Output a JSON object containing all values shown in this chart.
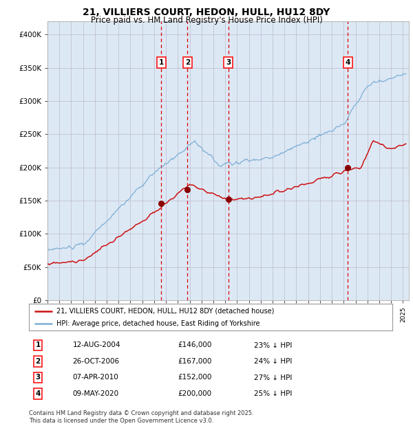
{
  "title": "21, VILLIERS COURT, HEDON, HULL, HU12 8DY",
  "subtitle": "Price paid vs. HM Land Registry's House Price Index (HPI)",
  "title_fontsize": 10,
  "subtitle_fontsize": 8.5,
  "background_color": "#ffffff",
  "plot_bg_color": "#dde8f5",
  "ylim": [
    0,
    420000
  ],
  "yticks": [
    0,
    50000,
    100000,
    150000,
    200000,
    250000,
    300000,
    350000,
    400000
  ],
  "ytick_labels": [
    "£0",
    "£50K",
    "£100K",
    "£150K",
    "£200K",
    "£250K",
    "£300K",
    "£350K",
    "£400K"
  ],
  "xstart_year": 1995,
  "xend_year": 2025,
  "hpi_color": "#7bafd4",
  "price_color": "#cc1111",
  "sale_marker_color": "#880000",
  "vline_color": "#dd0000",
  "grid_color": "#bbbbcc",
  "sale_dates": [
    "2004-08-12",
    "2006-10-26",
    "2010-04-07",
    "2020-05-09"
  ],
  "sale_prices": [
    146000,
    167000,
    152000,
    200000
  ],
  "sale_labels": [
    "1",
    "2",
    "3",
    "4"
  ],
  "legend_labels": [
    "21, VILLIERS COURT, HEDON, HULL, HU12 8DY (detached house)",
    "HPI: Average price, detached house, East Riding of Yorkshire"
  ],
  "table_rows": [
    [
      "1",
      "12-AUG-2004",
      "£146,000",
      "23% ↓ HPI"
    ],
    [
      "2",
      "26-OCT-2006",
      "£167,000",
      "24% ↓ HPI"
    ],
    [
      "3",
      "07-APR-2010",
      "£152,000",
      "27% ↓ HPI"
    ],
    [
      "4",
      "09-MAY-2020",
      "£200,000",
      "25% ↓ HPI"
    ]
  ],
  "footer": "Contains HM Land Registry data © Crown copyright and database right 2025.\nThis data is licensed under the Open Government Licence v3.0."
}
